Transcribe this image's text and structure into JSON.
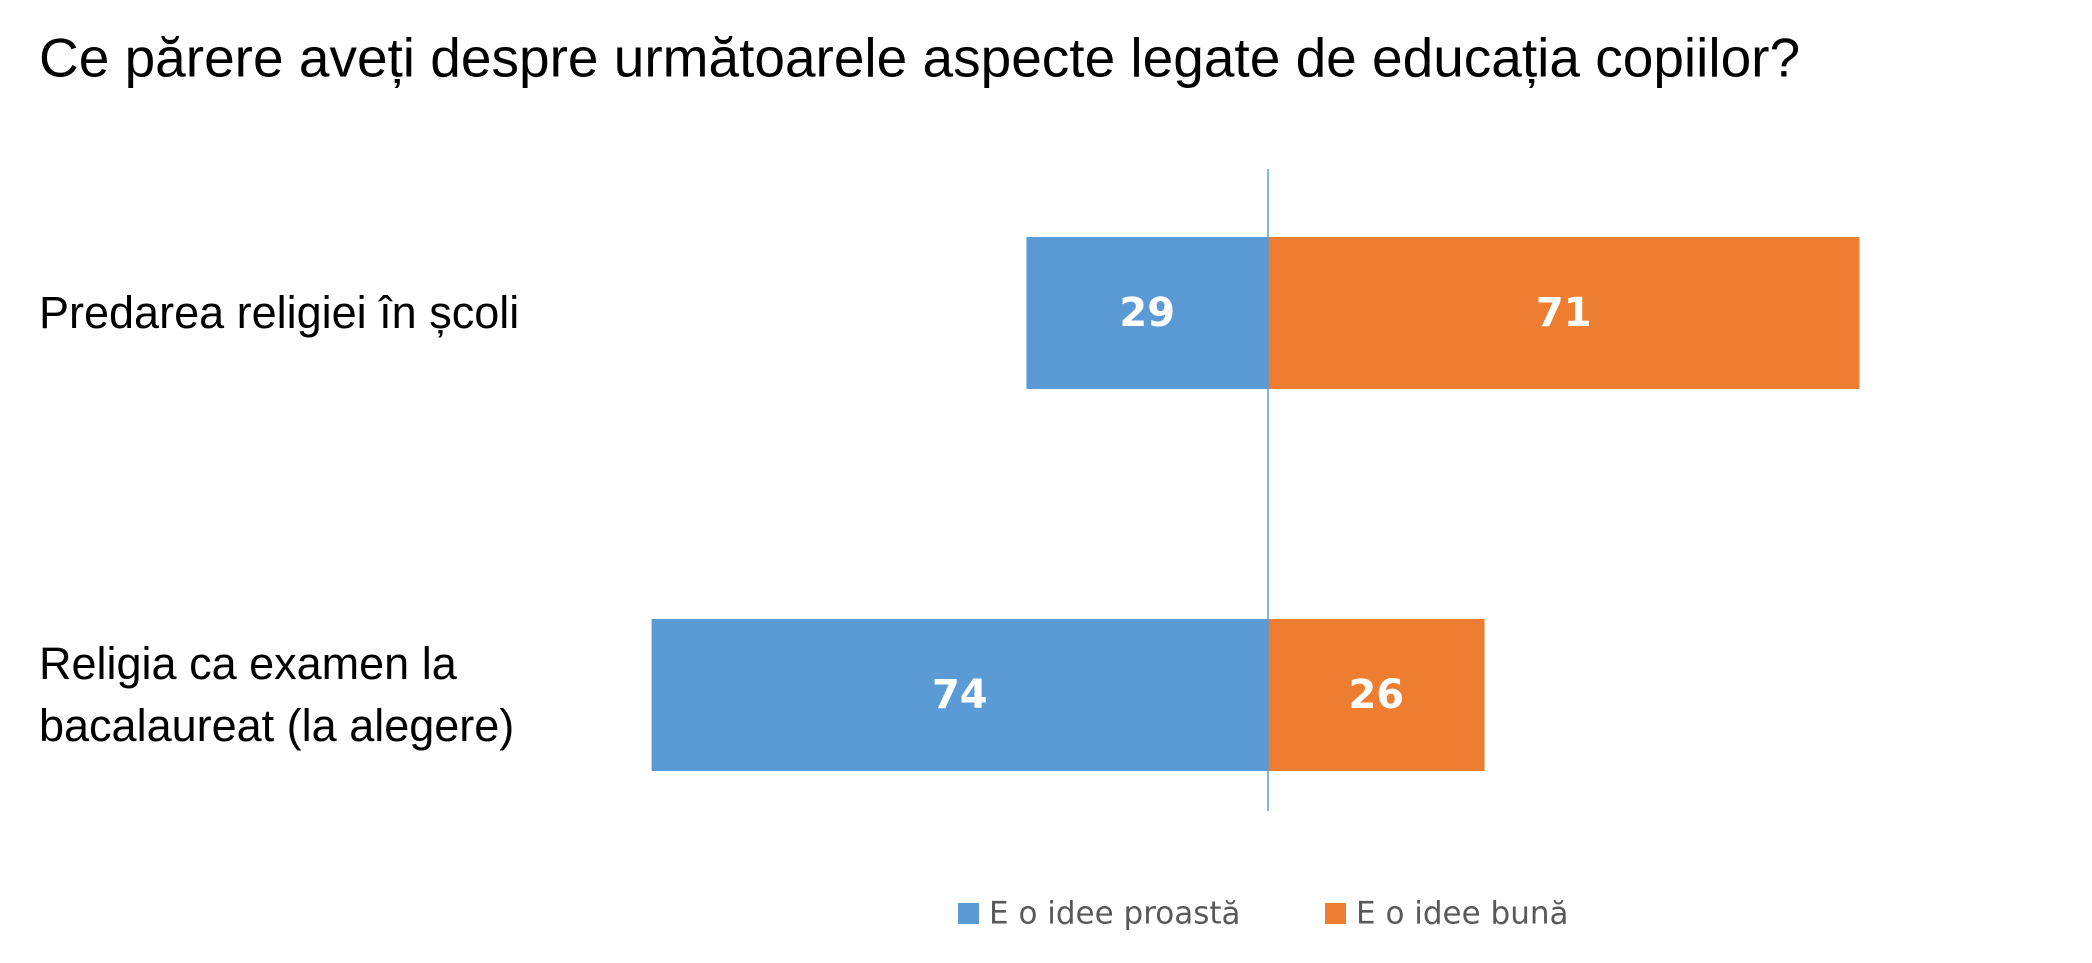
{
  "chart_data": {
    "type": "diverging_bar",
    "title": "Ce părere aveți despre următoarele aspecte legate de educația copiilor?",
    "categories": [
      "Predarea religiei în școli",
      "Religia ca examen la bacalaureat (la alegere)"
    ],
    "series": [
      {
        "name": "E o idee proastă",
        "color": "#5b9bd5",
        "side": "left",
        "values": [
          29,
          74
        ]
      },
      {
        "name": "E o idee bună",
        "color": "#ed7d31",
        "side": "right",
        "values": [
          71,
          26
        ]
      }
    ]
  }
}
